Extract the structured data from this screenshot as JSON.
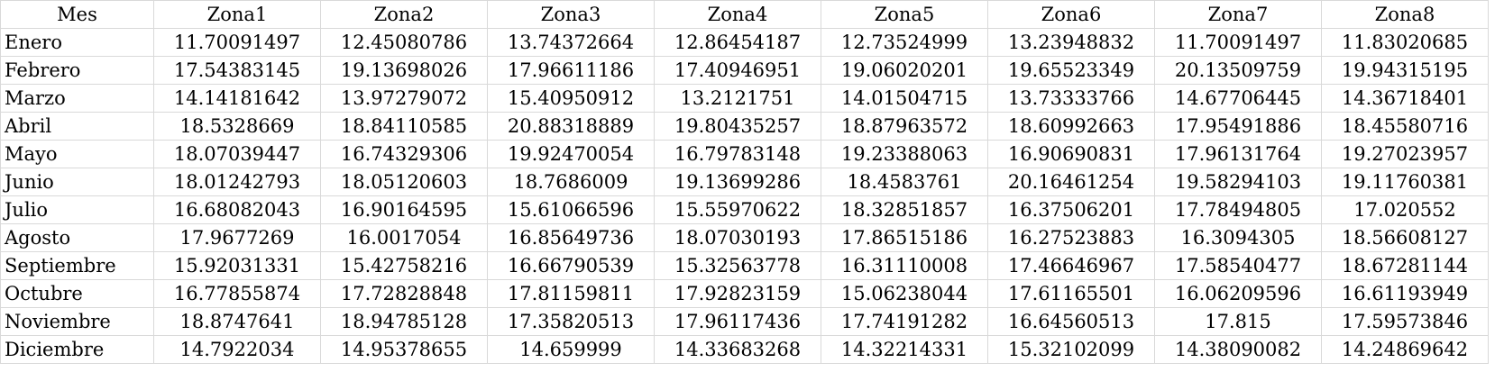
{
  "table": {
    "headers": [
      "Mes",
      "Zona1",
      "Zona2",
      "Zona3",
      "Zona4",
      "Zona5",
      "Zona6",
      "Zona7",
      "Zona8"
    ],
    "rows": [
      [
        "Enero",
        "11.70091497",
        "12.45080786",
        "13.74372664",
        "12.86454187",
        "12.73524999",
        "13.23948832",
        "11.70091497",
        "11.83020685"
      ],
      [
        "Febrero",
        "17.54383145",
        "19.13698026",
        "17.96611186",
        "17.40946951",
        "19.06020201",
        "19.65523349",
        "20.13509759",
        "19.94315195"
      ],
      [
        "Marzo",
        "14.14181642",
        "13.97279072",
        "15.40950912",
        "13.2121751",
        "14.01504715",
        "13.73333766",
        "14.67706445",
        "14.36718401"
      ],
      [
        "Abril",
        "18.5328669",
        "18.84110585",
        "20.88318889",
        "19.80435257",
        "18.87963572",
        "18.60992663",
        "17.95491886",
        "18.45580716"
      ],
      [
        "Mayo",
        "18.07039447",
        "16.74329306",
        "19.92470054",
        "16.79783148",
        "19.23388063",
        "16.90690831",
        "17.96131764",
        "19.27023957"
      ],
      [
        "Junio",
        "18.01242793",
        "18.05120603",
        "18.7686009",
        "19.13699286",
        "18.4583761",
        "20.16461254",
        "19.58294103",
        "19.11760381"
      ],
      [
        "Julio",
        "16.68082043",
        "16.90164595",
        "15.61066596",
        "15.55970622",
        "18.32851857",
        "16.37506201",
        "17.78494805",
        "17.020552"
      ],
      [
        "Agosto",
        "17.9677269",
        "16.0017054",
        "16.85649736",
        "18.07030193",
        "17.86515186",
        "16.27523883",
        "16.3094305",
        "18.56608127"
      ],
      [
        "Septiembre",
        "15.92031331",
        "15.42758216",
        "16.66790539",
        "15.32563778",
        "16.31110008",
        "17.46646967",
        "17.58540477",
        "18.67281144"
      ],
      [
        "Octubre",
        "16.77855874",
        "17.72828848",
        "17.81159811",
        "17.92823159",
        "15.06238044",
        "17.61165501",
        "16.06209596",
        "16.61193949"
      ],
      [
        "Noviembre",
        "18.8747641",
        "18.94785128",
        "17.35820513",
        "17.96117436",
        "17.74191282",
        "16.64560513",
        "17.815",
        "17.59573846"
      ],
      [
        "Diciembre",
        "14.7922034",
        "14.95378655",
        "14.659999",
        "14.33683268",
        "14.32214331",
        "15.32102099",
        "14.38090082",
        "14.24869642"
      ]
    ]
  }
}
